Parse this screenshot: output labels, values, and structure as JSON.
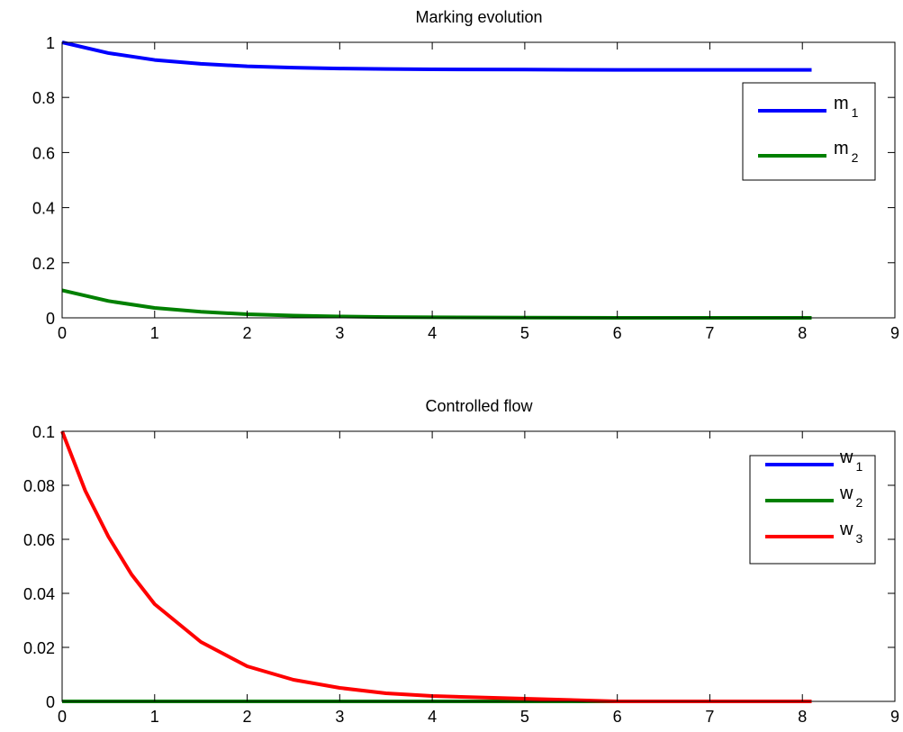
{
  "chart_data": [
    {
      "type": "line",
      "title": "Marking evolution",
      "xlabel": "",
      "ylabel": "",
      "xlim": [
        0,
        9
      ],
      "ylim": [
        0,
        1
      ],
      "xticks": [
        0,
        1,
        2,
        3,
        4,
        5,
        6,
        7,
        8,
        9
      ],
      "yticks": [
        0,
        0.2,
        0.4,
        0.6,
        0.8,
        1
      ],
      "ytick_labels": [
        "0",
        "0.2",
        "0.4",
        "0.6",
        "0.8",
        "1"
      ],
      "grid": false,
      "legend_position": "top-right",
      "x": [
        0,
        0.5,
        1,
        1.5,
        2,
        2.5,
        3,
        3.5,
        4,
        5,
        6,
        7,
        8,
        8.1
      ],
      "series": [
        {
          "name": "m",
          "subscript": "1",
          "color": "#0000ff",
          "values": [
            1.0,
            0.961,
            0.936,
            0.922,
            0.913,
            0.908,
            0.905,
            0.903,
            0.902,
            0.901,
            0.9,
            0.9,
            0.9,
            0.9
          ]
        },
        {
          "name": "m",
          "subscript": "2",
          "color": "#008000",
          "values": [
            0.1,
            0.061,
            0.036,
            0.022,
            0.013,
            0.008,
            0.005,
            0.003,
            0.002,
            0.001,
            0.0,
            0.0,
            0.0,
            0.0
          ]
        }
      ]
    },
    {
      "type": "line",
      "title": "Controlled flow",
      "xlabel": "",
      "ylabel": "",
      "xlim": [
        0,
        9
      ],
      "ylim": [
        0,
        0.1
      ],
      "xticks": [
        0,
        1,
        2,
        3,
        4,
        5,
        6,
        7,
        8,
        9
      ],
      "yticks": [
        0,
        0.02,
        0.04,
        0.06,
        0.08,
        0.1
      ],
      "ytick_labels": [
        "0",
        "0.02",
        "0.04",
        "0.06",
        "0.08",
        "0.1"
      ],
      "grid": false,
      "legend_position": "top-right",
      "x": [
        0,
        0.25,
        0.5,
        0.75,
        1,
        1.25,
        1.5,
        2,
        2.5,
        3,
        3.5,
        4,
        5,
        6,
        7,
        8,
        8.1
      ],
      "series": [
        {
          "name": "w",
          "subscript": "1",
          "color": "#0000ff",
          "values": [
            0,
            0,
            0,
            0,
            0,
            0,
            0,
            0,
            0,
            0,
            0,
            0,
            0,
            0,
            0,
            0,
            0
          ]
        },
        {
          "name": "w",
          "subscript": "2",
          "color": "#008000",
          "values": [
            0,
            0,
            0,
            0,
            0,
            0,
            0,
            0,
            0,
            0,
            0,
            0,
            0,
            0,
            0,
            0,
            0
          ]
        },
        {
          "name": "w",
          "subscript": "3",
          "color": "#ff0000",
          "values": [
            0.1,
            0.078,
            0.061,
            0.047,
            0.036,
            0.029,
            0.022,
            0.013,
            0.008,
            0.005,
            0.003,
            0.002,
            0.001,
            0.0,
            0.0,
            0.0,
            0.0
          ]
        }
      ]
    }
  ]
}
